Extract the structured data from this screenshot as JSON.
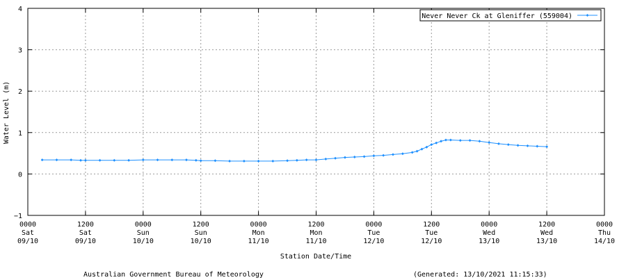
{
  "chart_data": {
    "type": "line",
    "title": "",
    "xlabel": "Station Date/Time",
    "ylabel": "Water Level (m)",
    "ylim": [
      -1,
      4
    ],
    "yticks": [
      "4",
      "3",
      "2",
      "1",
      "0",
      "−1"
    ],
    "yticks_values": [
      4,
      3,
      2,
      1,
      0,
      -1
    ],
    "xlim": [
      "2021-10-09 00:00",
      "2021-10-14 00:00"
    ],
    "xticks": [
      {
        "time": "0000",
        "day": "Sat",
        "date": "09/10",
        "at": "2021-10-09 00:00"
      },
      {
        "time": "1200",
        "day": "Sat",
        "date": "09/10",
        "at": "2021-10-09 12:00"
      },
      {
        "time": "0000",
        "day": "Sun",
        "date": "10/10",
        "at": "2021-10-10 00:00"
      },
      {
        "time": "1200",
        "day": "Sun",
        "date": "10/10",
        "at": "2021-10-10 12:00"
      },
      {
        "time": "0000",
        "day": "Mon",
        "date": "11/10",
        "at": "2021-10-11 00:00"
      },
      {
        "time": "1200",
        "day": "Mon",
        "date": "11/10",
        "at": "2021-10-11 12:00"
      },
      {
        "time": "0000",
        "day": "Tue",
        "date": "12/10",
        "at": "2021-10-12 00:00"
      },
      {
        "time": "1200",
        "day": "Tue",
        "date": "12/10",
        "at": "2021-10-12 12:00"
      },
      {
        "time": "0000",
        "day": "Wed",
        "date": "13/10",
        "at": "2021-10-13 00:00"
      },
      {
        "time": "1200",
        "day": "Wed",
        "date": "13/10",
        "at": "2021-10-13 12:00"
      },
      {
        "time": "0000",
        "day": "Thu",
        "date": "14/10",
        "at": "2021-10-14 00:00"
      }
    ],
    "grid": true,
    "legend_position": "top-right",
    "series": [
      {
        "name": "Never Never Ck at Gleniffer (559004)",
        "color": "#1E90FF",
        "marker": "diamond",
        "points": [
          [
            "2021-10-09 03:00",
            0.34
          ],
          [
            "2021-10-09 06:00",
            0.34
          ],
          [
            "2021-10-09 09:00",
            0.34
          ],
          [
            "2021-10-09 11:00",
            0.33
          ],
          [
            "2021-10-09 12:00",
            0.33
          ],
          [
            "2021-10-09 15:00",
            0.33
          ],
          [
            "2021-10-09 18:00",
            0.33
          ],
          [
            "2021-10-09 21:00",
            0.33
          ],
          [
            "2021-10-10 00:00",
            0.34
          ],
          [
            "2021-10-10 03:00",
            0.34
          ],
          [
            "2021-10-10 06:00",
            0.34
          ],
          [
            "2021-10-10 09:00",
            0.34
          ],
          [
            "2021-10-10 11:00",
            0.33
          ],
          [
            "2021-10-10 12:00",
            0.32
          ],
          [
            "2021-10-10 15:00",
            0.32
          ],
          [
            "2021-10-10 18:00",
            0.31
          ],
          [
            "2021-10-10 21:00",
            0.31
          ],
          [
            "2021-10-11 00:00",
            0.31
          ],
          [
            "2021-10-11 03:00",
            0.31
          ],
          [
            "2021-10-11 06:00",
            0.32
          ],
          [
            "2021-10-11 08:00",
            0.33
          ],
          [
            "2021-10-11 10:00",
            0.34
          ],
          [
            "2021-10-11 12:00",
            0.34
          ],
          [
            "2021-10-11 14:00",
            0.36
          ],
          [
            "2021-10-11 16:00",
            0.38
          ],
          [
            "2021-10-11 18:00",
            0.4
          ],
          [
            "2021-10-11 20:00",
            0.41
          ],
          [
            "2021-10-11 22:00",
            0.42
          ],
          [
            "2021-10-12 00:00",
            0.44
          ],
          [
            "2021-10-12 02:00",
            0.45
          ],
          [
            "2021-10-12 04:00",
            0.47
          ],
          [
            "2021-10-12 06:00",
            0.49
          ],
          [
            "2021-10-12 08:00",
            0.52
          ],
          [
            "2021-10-12 09:00",
            0.55
          ],
          [
            "2021-10-12 10:00",
            0.6
          ],
          [
            "2021-10-12 11:00",
            0.65
          ],
          [
            "2021-10-12 12:00",
            0.71
          ],
          [
            "2021-10-12 13:00",
            0.75
          ],
          [
            "2021-10-12 14:00",
            0.79
          ],
          [
            "2021-10-12 15:00",
            0.82
          ],
          [
            "2021-10-12 16:00",
            0.82
          ],
          [
            "2021-10-12 18:00",
            0.81
          ],
          [
            "2021-10-12 20:00",
            0.81
          ],
          [
            "2021-10-12 22:00",
            0.79
          ],
          [
            "2021-10-13 00:00",
            0.76
          ],
          [
            "2021-10-13 02:00",
            0.73
          ],
          [
            "2021-10-13 04:00",
            0.71
          ],
          [
            "2021-10-13 06:00",
            0.69
          ],
          [
            "2021-10-13 08:00",
            0.68
          ],
          [
            "2021-10-13 10:00",
            0.67
          ],
          [
            "2021-10-13 12:00",
            0.66
          ]
        ]
      }
    ]
  },
  "footer": {
    "credit": "Australian Government Bureau of Meteorology",
    "generated": "(Generated: 13/10/2021 11:15:33)"
  }
}
